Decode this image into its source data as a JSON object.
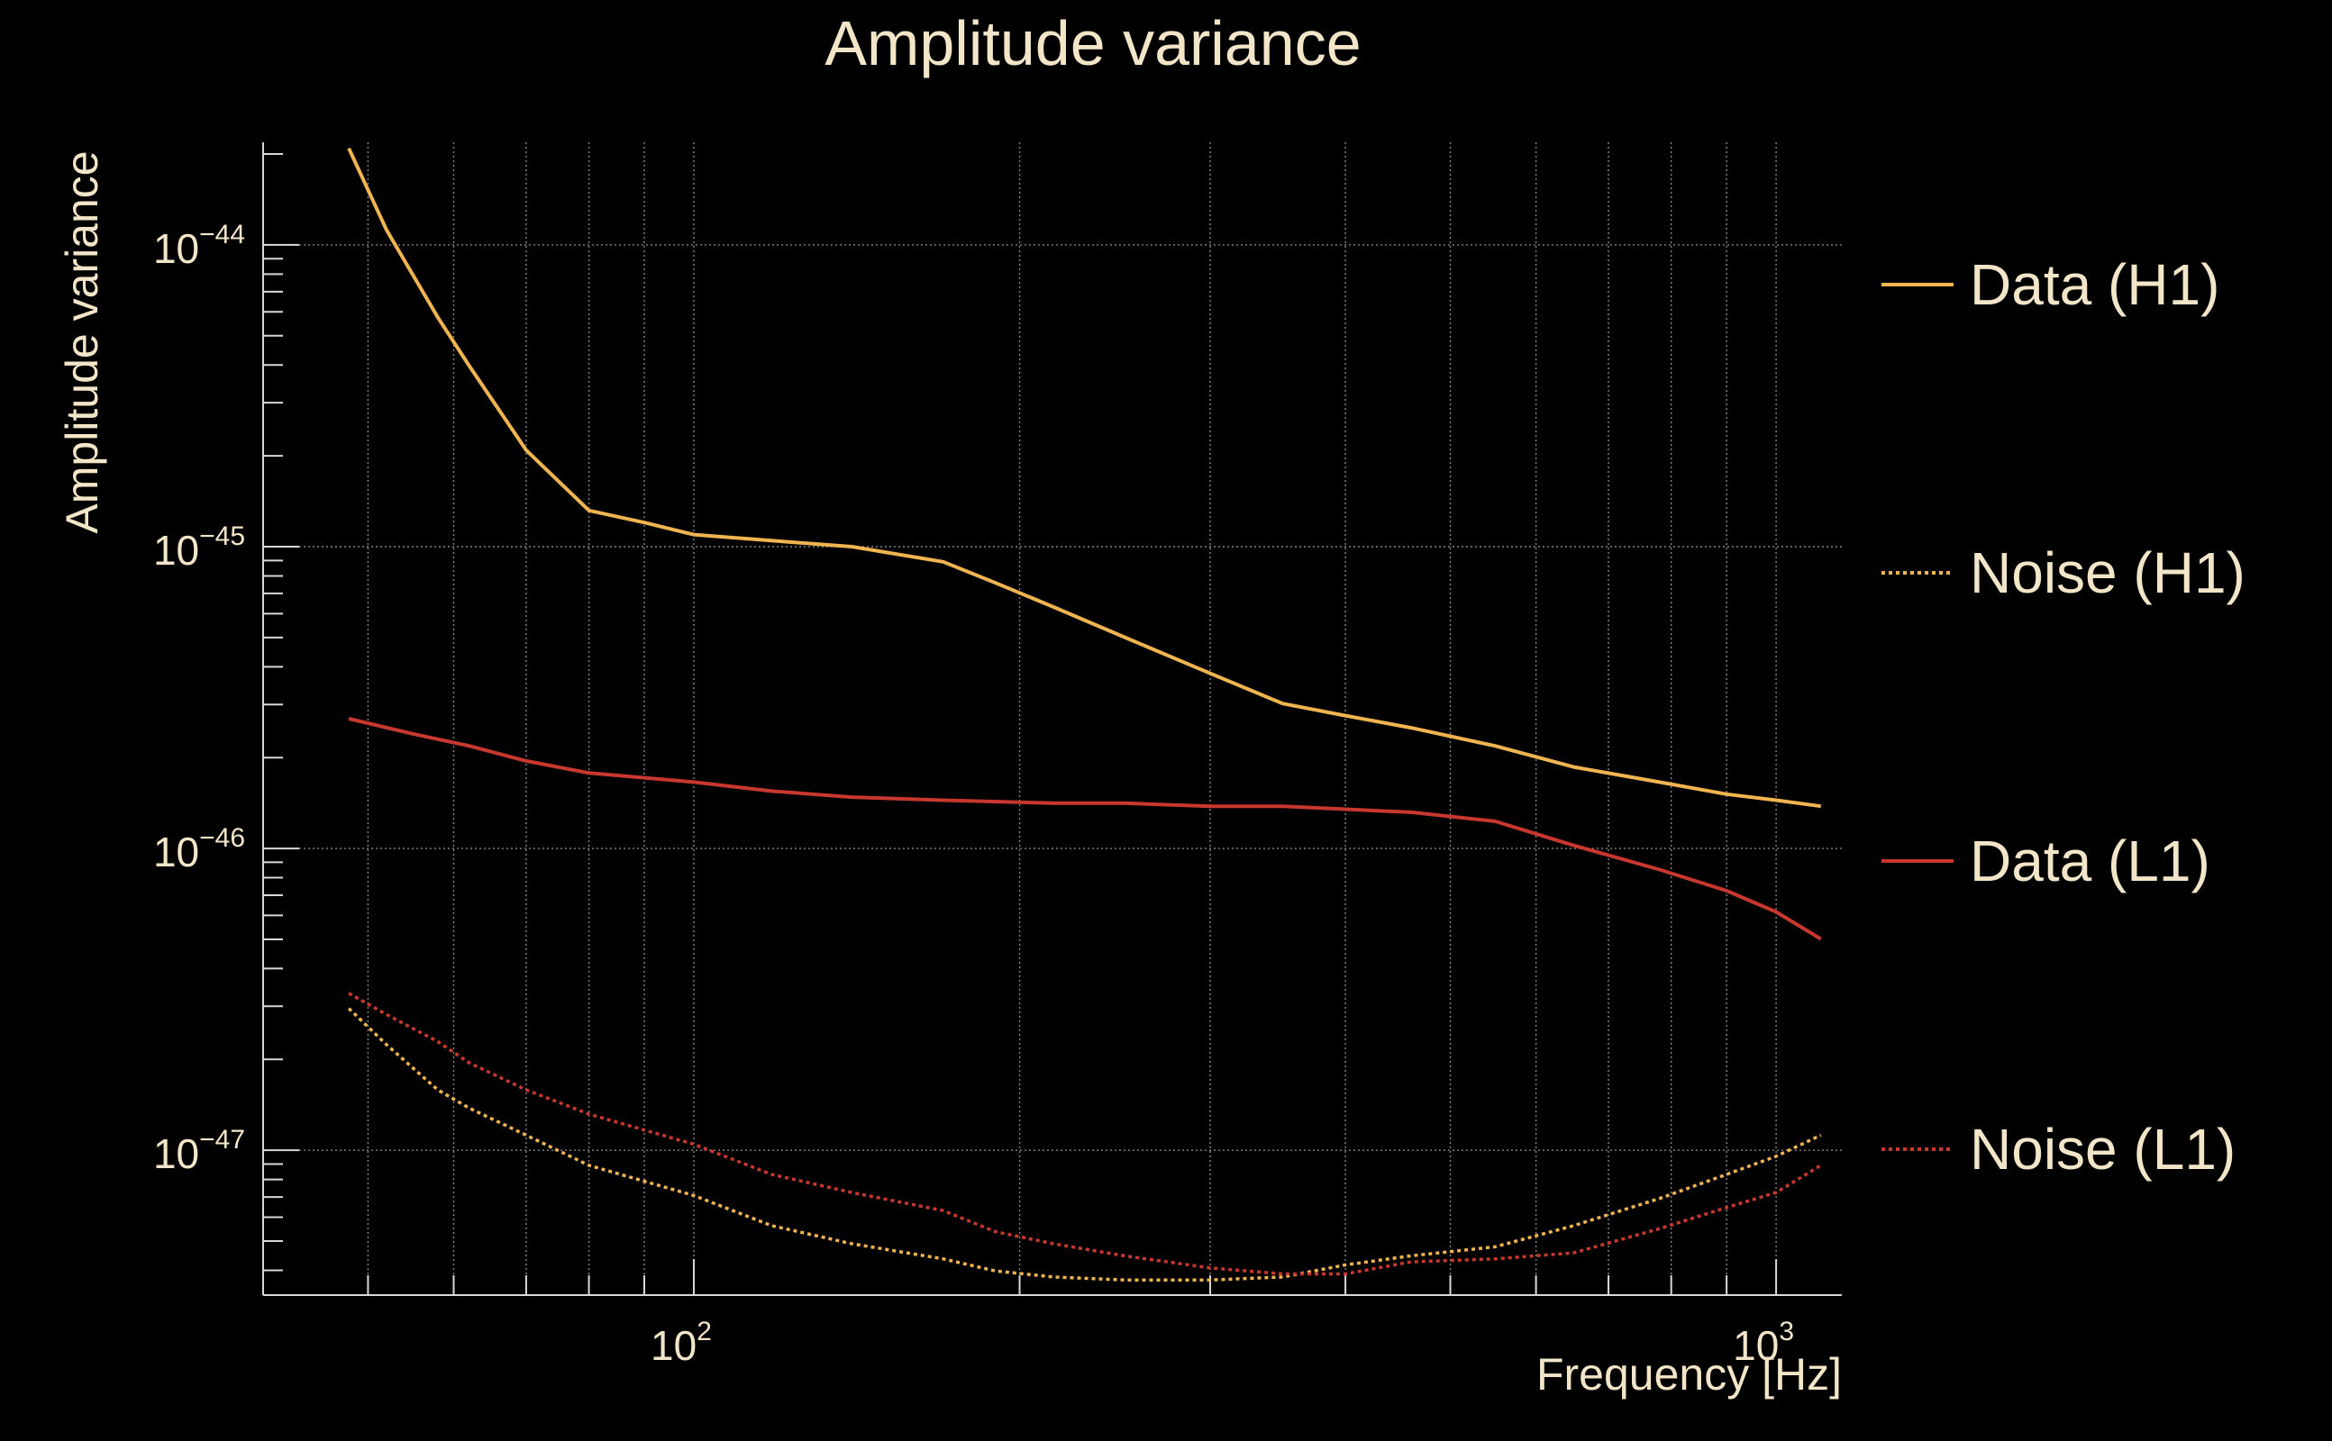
{
  "chart_data": {
    "type": "line",
    "title": "Amplitude variance",
    "xlabel": "Frequency [Hz]",
    "ylabel": "Amplitude variance",
    "xscale": "log",
    "yscale": "log",
    "xlim": [
      40,
      1150
    ],
    "ylim_exponent": [
      -47.48,
      -43.66
    ],
    "x_ticks": [
      {
        "value": 100,
        "base": "10",
        "exp": "2"
      },
      {
        "value": 1000,
        "base": "10",
        "exp": "3"
      }
    ],
    "y_ticks": [
      {
        "value": -44,
        "base": "10",
        "exp": "−44"
      },
      {
        "value": -45,
        "base": "10",
        "exp": "−45"
      },
      {
        "value": -46,
        "base": "10",
        "exp": "−46"
      },
      {
        "value": -47,
        "base": "10",
        "exp": "−47"
      }
    ],
    "grid": true,
    "legend": "right",
    "series": [
      {
        "name": "Data (H1)",
        "color": "#f0b450",
        "style": "solid",
        "points": [
          [
            48,
            -43.68
          ],
          [
            52,
            -43.95
          ],
          [
            58,
            -44.24
          ],
          [
            62,
            -44.4
          ],
          [
            70,
            -44.68
          ],
          [
            80,
            -44.88
          ],
          [
            90,
            -44.92
          ],
          [
            100,
            -44.96
          ],
          [
            118,
            -44.98
          ],
          [
            140,
            -45.0
          ],
          [
            170,
            -45.05
          ],
          [
            190,
            -45.12
          ],
          [
            215,
            -45.2
          ],
          [
            250,
            -45.3
          ],
          [
            300,
            -45.42
          ],
          [
            350,
            -45.52
          ],
          [
            400,
            -45.56
          ],
          [
            460,
            -45.6
          ],
          [
            550,
            -45.66
          ],
          [
            650,
            -45.73
          ],
          [
            780,
            -45.78
          ],
          [
            900,
            -45.82
          ],
          [
            1000,
            -45.84
          ],
          [
            1100,
            -45.86
          ]
        ]
      },
      {
        "name": "Noise (H1)",
        "color": "#f0b450",
        "style": "dotted",
        "points": [
          [
            48,
            -46.53
          ],
          [
            52,
            -46.65
          ],
          [
            58,
            -46.8
          ],
          [
            62,
            -46.86
          ],
          [
            70,
            -46.95
          ],
          [
            80,
            -47.05
          ],
          [
            100,
            -47.15
          ],
          [
            118,
            -47.25
          ],
          [
            140,
            -47.31
          ],
          [
            170,
            -47.36
          ],
          [
            190,
            -47.4
          ],
          [
            215,
            -47.42
          ],
          [
            250,
            -47.43
          ],
          [
            300,
            -47.43
          ],
          [
            350,
            -47.42
          ],
          [
            400,
            -47.38
          ],
          [
            460,
            -47.35
          ],
          [
            550,
            -47.32
          ],
          [
            650,
            -47.25
          ],
          [
            780,
            -47.16
          ],
          [
            900,
            -47.08
          ],
          [
            1000,
            -47.02
          ],
          [
            1100,
            -46.95
          ]
        ]
      },
      {
        "name": "Data (L1)",
        "color": "#c8382e",
        "style": "solid",
        "points": [
          [
            48,
            -45.57
          ],
          [
            55,
            -45.62
          ],
          [
            62,
            -45.66
          ],
          [
            70,
            -45.71
          ],
          [
            80,
            -45.75
          ],
          [
            100,
            -45.78
          ],
          [
            118,
            -45.81
          ],
          [
            140,
            -45.83
          ],
          [
            170,
            -45.84
          ],
          [
            215,
            -45.85
          ],
          [
            250,
            -45.85
          ],
          [
            300,
            -45.86
          ],
          [
            350,
            -45.86
          ],
          [
            400,
            -45.87
          ],
          [
            460,
            -45.88
          ],
          [
            550,
            -45.91
          ],
          [
            650,
            -45.99
          ],
          [
            780,
            -46.07
          ],
          [
            900,
            -46.14
          ],
          [
            1000,
            -46.21
          ],
          [
            1100,
            -46.3
          ]
        ]
      },
      {
        "name": "Noise (L1)",
        "color": "#c8382e",
        "style": "dotted",
        "points": [
          [
            48,
            -46.48
          ],
          [
            52,
            -46.55
          ],
          [
            58,
            -46.64
          ],
          [
            62,
            -46.71
          ],
          [
            70,
            -46.8
          ],
          [
            80,
            -46.88
          ],
          [
            100,
            -46.98
          ],
          [
            118,
            -47.08
          ],
          [
            140,
            -47.14
          ],
          [
            170,
            -47.2
          ],
          [
            190,
            -47.27
          ],
          [
            215,
            -47.31
          ],
          [
            250,
            -47.35
          ],
          [
            300,
            -47.39
          ],
          [
            350,
            -47.41
          ],
          [
            400,
            -47.41
          ],
          [
            460,
            -47.37
          ],
          [
            550,
            -47.36
          ],
          [
            650,
            -47.34
          ],
          [
            780,
            -47.26
          ],
          [
            900,
            -47.19
          ],
          [
            1000,
            -47.14
          ],
          [
            1100,
            -47.05
          ]
        ]
      }
    ]
  }
}
